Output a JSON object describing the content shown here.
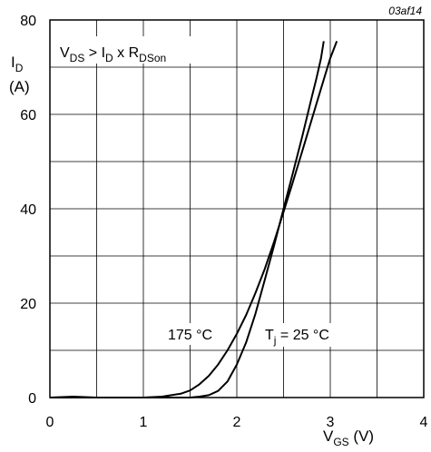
{
  "figure_id": "03af14",
  "chart_data": {
    "type": "line",
    "xlabel": {
      "main": "V",
      "sub": "GS",
      "unit": " (V)"
    },
    "ylabel": {
      "main": "I",
      "sub": "D",
      "unit": "(A)"
    },
    "xlim": [
      0,
      4
    ],
    "ylim": [
      0,
      80
    ],
    "x_ticks": [
      0,
      1,
      2,
      3,
      4
    ],
    "y_ticks": [
      0,
      20,
      40,
      60,
      80
    ],
    "x_minor_step": 0.5,
    "y_minor_step": 10,
    "grid": true,
    "condition": {
      "p1": "V",
      "p1_sub": "DS",
      "p2": " > I",
      "p2_sub": "D",
      "p3": " x R",
      "p3_sub": "DSon"
    },
    "series": [
      {
        "name": "175 °C",
        "x": [
          0,
          0.25,
          0.5,
          1.0,
          1.2,
          1.4,
          1.5,
          1.6,
          1.7,
          1.8,
          1.9,
          2.0,
          2.1,
          2.2,
          2.3,
          2.4,
          2.5,
          2.6,
          2.7,
          2.8,
          2.9,
          2.95,
          3.0,
          3.07
        ],
        "y": [
          0,
          0.2,
          0,
          0,
          0.2,
          0.8,
          1.5,
          2.8,
          4.6,
          7.0,
          10.0,
          13.5,
          17.5,
          22.2,
          27.3,
          33.1,
          39.3,
          45.7,
          52.2,
          58.8,
          65.4,
          68.7,
          71.9,
          75.5
        ]
      },
      {
        "name": "25 °C",
        "label_main": "T",
        "label_sub": "j",
        "label_rest": " = 25 °C",
        "x": [
          0,
          1.0,
          1.5,
          1.6,
          1.7,
          1.8,
          1.9,
          2.0,
          2.1,
          2.2,
          2.3,
          2.4,
          2.5,
          2.6,
          2.7,
          2.8,
          2.85,
          2.9,
          2.93
        ],
        "y": [
          0,
          0,
          0,
          0.2,
          0.5,
          1.4,
          3.4,
          7.0,
          11.7,
          17.8,
          25.0,
          32.3,
          40.0,
          47.6,
          55.3,
          63.5,
          67.5,
          71.8,
          75.5
        ]
      }
    ]
  }
}
